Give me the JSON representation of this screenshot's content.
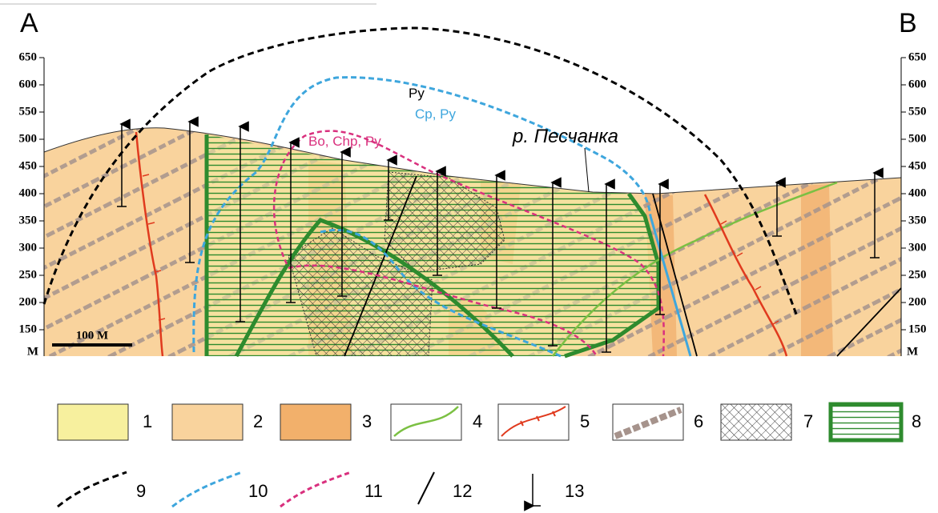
{
  "header": {
    "left": "A",
    "right": "B"
  },
  "axis": {
    "ticks": [
      650,
      600,
      550,
      500,
      450,
      400,
      350,
      300,
      250,
      200,
      150
    ],
    "unit": "M"
  },
  "scale_bar": "100 M",
  "labels": {
    "py": "Py",
    "cp_py": "Cp, Py",
    "bo_chp_py": "Bo, Chp, Py",
    "river": "р. Песчанка"
  },
  "legend": {
    "items": [
      "1",
      "2",
      "3",
      "4",
      "5",
      "6",
      "7",
      "8",
      "9",
      "10",
      "11",
      "12",
      "13"
    ]
  }
}
